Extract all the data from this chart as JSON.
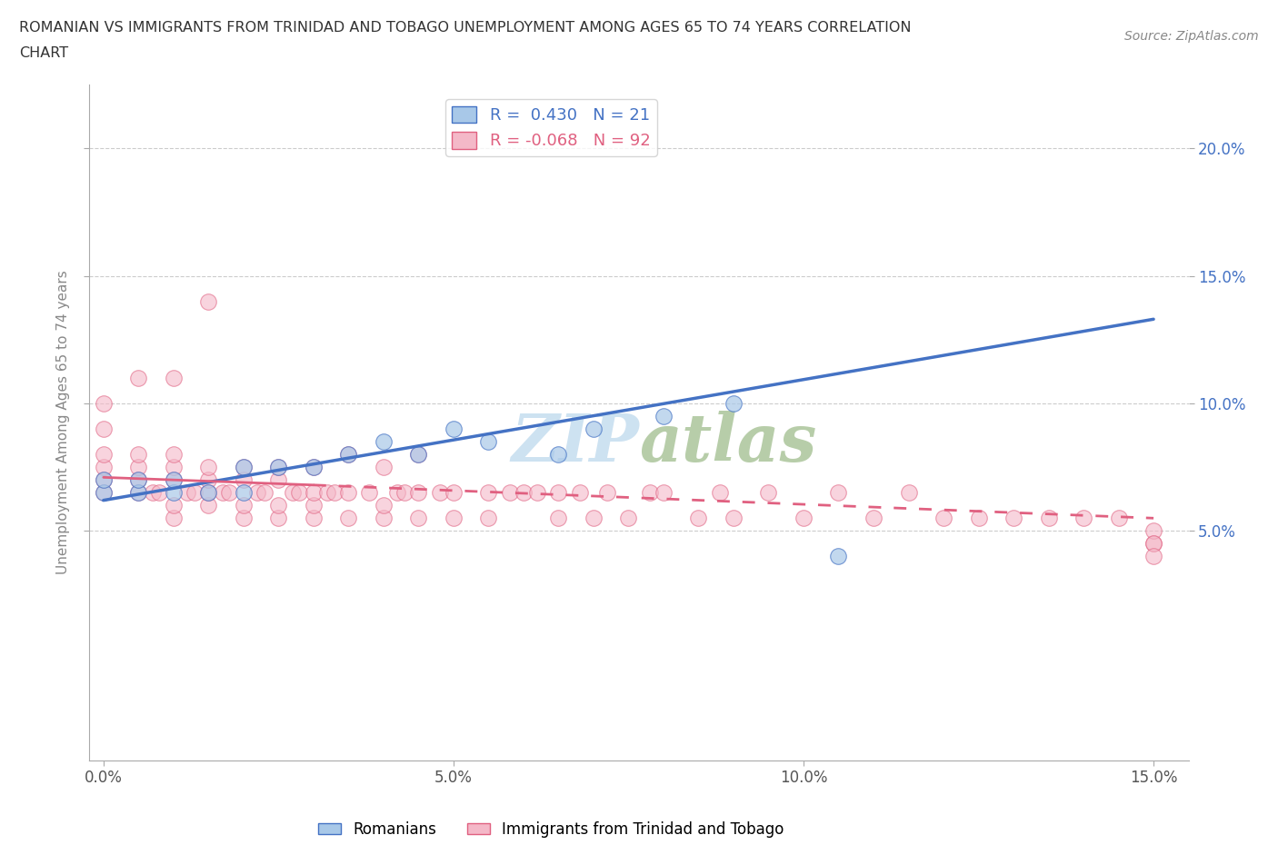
{
  "title_line1": "ROMANIAN VS IMMIGRANTS FROM TRINIDAD AND TOBAGO UNEMPLOYMENT AMONG AGES 65 TO 74 YEARS CORRELATION",
  "title_line2": "CHART",
  "source_text": "Source: ZipAtlas.com",
  "ylabel": "Unemployment Among Ages 65 to 74 years",
  "legend_label_1": "Romanians",
  "legend_label_2": "Immigrants from Trinidad and Tobago",
  "r1": 0.43,
  "n1": 21,
  "r2": -0.068,
  "n2": 92,
  "color1": "#a8c8e8",
  "color2": "#f4b8c8",
  "trendline_color1": "#4472c4",
  "trendline_color2": "#e06080",
  "watermark_color": "#c8dff0",
  "xlim": [
    -0.002,
    0.155
  ],
  "ylim": [
    -0.04,
    0.225
  ],
  "xticks": [
    0.0,
    0.05,
    0.1,
    0.15
  ],
  "xtick_labels": [
    "0.0%",
    "5.0%",
    "10.0%",
    "15.0%"
  ],
  "yticks": [
    0.05,
    0.1,
    0.15,
    0.2
  ],
  "ytick_labels": [
    "5.0%",
    "10.0%",
    "15.0%",
    "20.0%"
  ],
  "scatter_blue_x": [
    0.0,
    0.0,
    0.005,
    0.005,
    0.01,
    0.01,
    0.015,
    0.02,
    0.02,
    0.025,
    0.03,
    0.035,
    0.04,
    0.045,
    0.05,
    0.055,
    0.065,
    0.07,
    0.08,
    0.09,
    0.105
  ],
  "scatter_blue_y": [
    0.065,
    0.07,
    0.065,
    0.07,
    0.065,
    0.07,
    0.065,
    0.065,
    0.075,
    0.075,
    0.075,
    0.08,
    0.085,
    0.08,
    0.09,
    0.085,
    0.08,
    0.09,
    0.095,
    0.1,
    0.04
  ],
  "scatter_pink_x": [
    0.0,
    0.0,
    0.0,
    0.0,
    0.0,
    0.0,
    0.005,
    0.005,
    0.005,
    0.005,
    0.005,
    0.007,
    0.008,
    0.01,
    0.01,
    0.01,
    0.01,
    0.01,
    0.01,
    0.012,
    0.013,
    0.015,
    0.015,
    0.015,
    0.015,
    0.015,
    0.017,
    0.018,
    0.02,
    0.02,
    0.02,
    0.02,
    0.022,
    0.023,
    0.025,
    0.025,
    0.025,
    0.025,
    0.027,
    0.028,
    0.03,
    0.03,
    0.03,
    0.03,
    0.032,
    0.033,
    0.035,
    0.035,
    0.035,
    0.038,
    0.04,
    0.04,
    0.04,
    0.042,
    0.043,
    0.045,
    0.045,
    0.045,
    0.048,
    0.05,
    0.05,
    0.055,
    0.055,
    0.058,
    0.06,
    0.062,
    0.065,
    0.065,
    0.068,
    0.07,
    0.072,
    0.075,
    0.078,
    0.08,
    0.085,
    0.088,
    0.09,
    0.095,
    0.1,
    0.105,
    0.11,
    0.115,
    0.12,
    0.125,
    0.13,
    0.135,
    0.14,
    0.145,
    0.15,
    0.15,
    0.15,
    0.15
  ],
  "scatter_pink_y": [
    0.065,
    0.07,
    0.075,
    0.08,
    0.09,
    0.1,
    0.065,
    0.07,
    0.075,
    0.08,
    0.11,
    0.065,
    0.065,
    0.055,
    0.06,
    0.07,
    0.075,
    0.08,
    0.11,
    0.065,
    0.065,
    0.06,
    0.065,
    0.07,
    0.075,
    0.14,
    0.065,
    0.065,
    0.055,
    0.06,
    0.07,
    0.075,
    0.065,
    0.065,
    0.055,
    0.06,
    0.07,
    0.075,
    0.065,
    0.065,
    0.055,
    0.06,
    0.065,
    0.075,
    0.065,
    0.065,
    0.055,
    0.065,
    0.08,
    0.065,
    0.055,
    0.06,
    0.075,
    0.065,
    0.065,
    0.055,
    0.065,
    0.08,
    0.065,
    0.055,
    0.065,
    0.055,
    0.065,
    0.065,
    0.065,
    0.065,
    0.055,
    0.065,
    0.065,
    0.055,
    0.065,
    0.055,
    0.065,
    0.065,
    0.055,
    0.065,
    0.055,
    0.065,
    0.055,
    0.065,
    0.055,
    0.065,
    0.055,
    0.055,
    0.055,
    0.055,
    0.055,
    0.055,
    0.045,
    0.05,
    0.045,
    0.04
  ],
  "trendline_blue_x0": 0.0,
  "trendline_blue_y0": 0.062,
  "trendline_blue_x1": 0.15,
  "trendline_blue_y1": 0.133,
  "trendline_pink_solid_x0": 0.0,
  "trendline_pink_solid_y0": 0.071,
  "trendline_pink_solid_x1": 0.03,
  "trendline_pink_solid_y1": 0.068,
  "trendline_pink_dash_x0": 0.03,
  "trendline_pink_dash_y0": 0.068,
  "trendline_pink_dash_x1": 0.15,
  "trendline_pink_dash_y1": 0.055
}
